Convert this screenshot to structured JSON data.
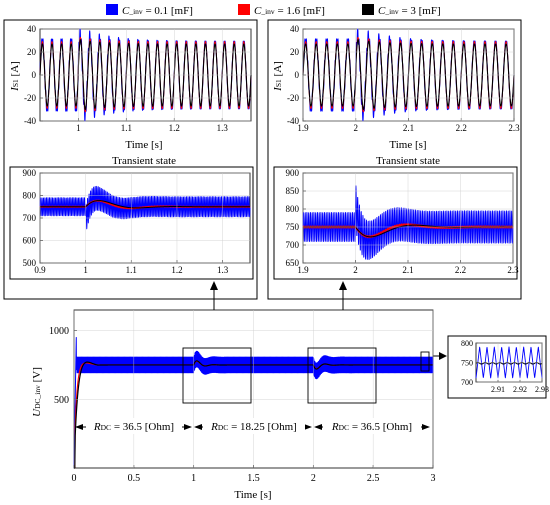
{
  "legend": {
    "entries": [
      {
        "name_italic": "C",
        "name_sub": "_inv",
        "eq": " = 0.1 [mF]",
        "color": "#0000ff"
      },
      {
        "name_italic": "C",
        "name_sub": "_inv",
        "eq": " = 1.6 [mF]",
        "color": "#ff0000"
      },
      {
        "name_italic": "C",
        "name_sub": "_inv",
        "eq": " = 3 [mF]",
        "color": "#000000"
      }
    ]
  },
  "labels": {
    "transient": "Transient state",
    "time": "Time [s]",
    "is1_main": "I",
    "is1_sub": "S1",
    "is1_unit": " [A]",
    "udc_main": "U",
    "udc_sub": "DC_inv",
    "udc_unit": " [V]",
    "r1_main": "R",
    "r1_sub": "DC",
    "r1_val": " = 36.5 [Ohm]",
    "r2_main": "R",
    "r2_sub": "DC",
    "r2_val": " = 18.25 [Ohm]",
    "r3_main": "R",
    "r3_sub": "DC",
    "r3_val": " = 36.5 [Ohm]"
  },
  "chart_data": [
    {
      "id": "current-left",
      "type": "line",
      "x_range": [
        0.92,
        1.36
      ],
      "ylim": [
        -40,
        40
      ],
      "xticks": [
        "1",
        "1.1",
        "1.2",
        "1.3"
      ],
      "yticks": [
        "40",
        "20",
        "0",
        "-20",
        "-40"
      ],
      "frequency_hz": 50,
      "amplitude_a": 30,
      "series": [
        {
          "color": "#0000ff"
        },
        {
          "color": "#ff0000"
        },
        {
          "color": "#000000"
        }
      ]
    },
    {
      "id": "current-right",
      "type": "line",
      "x_range": [
        1.9,
        2.3
      ],
      "ylim": [
        -40,
        40
      ],
      "xticks": [
        "1.9",
        "2",
        "2.1",
        "2.2",
        "2.3"
      ],
      "yticks": [
        "40",
        "20",
        "0",
        "-20",
        "-40"
      ],
      "frequency_hz": 50,
      "amplitude_a": 30,
      "series": [
        {
          "color": "#0000ff"
        },
        {
          "color": "#ff0000"
        },
        {
          "color": "#000000"
        }
      ]
    },
    {
      "id": "voltage-left-transient",
      "type": "line",
      "x_range": [
        0.9,
        1.36
      ],
      "ylim": [
        500,
        900
      ],
      "xticks": [
        "0.9",
        "1",
        "1.1",
        "1.2",
        "1.3"
      ],
      "yticks": [
        "900",
        "800",
        "700",
        "600",
        "500"
      ],
      "steady_value_v": 750,
      "series": [
        {
          "color": "#0000ff"
        },
        {
          "color": "#ff0000"
        },
        {
          "color": "#000000"
        }
      ]
    },
    {
      "id": "voltage-right-transient",
      "type": "line",
      "x_range": [
        1.9,
        2.3
      ],
      "ylim": [
        650,
        900
      ],
      "xticks": [
        "1.9",
        "2",
        "2.1",
        "2.2",
        "2.3"
      ],
      "yticks": [
        "900",
        "850",
        "800",
        "750",
        "700",
        "650"
      ],
      "steady_value_v": 750,
      "series": [
        {
          "color": "#0000ff"
        },
        {
          "color": "#ff0000"
        },
        {
          "color": "#000000"
        }
      ]
    },
    {
      "id": "voltage-overview",
      "type": "line",
      "x_range": [
        0,
        3
      ],
      "ylim": [
        0,
        1150
      ],
      "xticks": [
        "0",
        "0.5",
        "1",
        "1.5",
        "2",
        "2.5",
        "3"
      ],
      "yticks": [
        "1000",
        "500"
      ],
      "steady_value_v": 750,
      "load_change_times_s": [
        1,
        2
      ],
      "series": [
        {
          "color": "#0000ff"
        },
        {
          "color": "#ff0000"
        },
        {
          "color": "#000000"
        }
      ]
    },
    {
      "id": "voltage-zoom-inset",
      "type": "line",
      "x_range": [
        2.9,
        2.93
      ],
      "ylim": [
        700,
        800
      ],
      "xticks": [
        "2.91",
        "2.92",
        "2.93"
      ],
      "yticks": [
        "800",
        "750",
        "700"
      ],
      "series": [
        {
          "color": "#0000ff"
        },
        {
          "color": "#000000"
        }
      ]
    }
  ]
}
